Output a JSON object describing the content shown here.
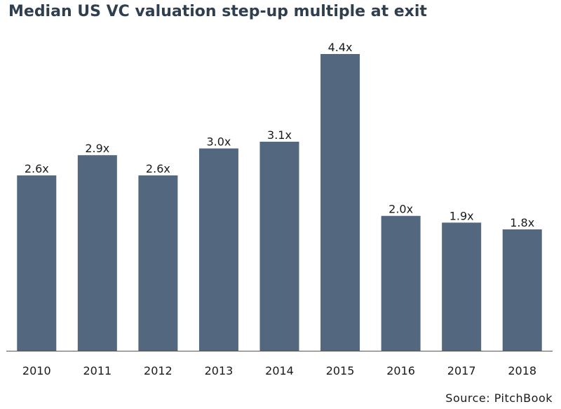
{
  "title": "Median US VC valuation step-up multiple at exit",
  "source": "Source: PitchBook",
  "colors": {
    "bar": "#53677e",
    "axis": "#555555",
    "title": "#2f3f4f"
  },
  "chart_data": {
    "type": "bar",
    "title": "Median US VC valuation step-up multiple at exit",
    "categories": [
      "2010",
      "2011",
      "2012",
      "2013",
      "2014",
      "2015",
      "2016",
      "2017",
      "2018"
    ],
    "values": [
      2.6,
      2.9,
      2.6,
      3.0,
      3.1,
      4.4,
      2.0,
      1.9,
      1.8
    ],
    "data_labels": [
      "2.6x",
      "2.9x",
      "2.6x",
      "3.0x",
      "3.1x",
      "4.4x",
      "2.0x",
      "1.9x",
      "1.8x"
    ],
    "xlabel": "",
    "ylabel": "",
    "ylim": [
      0,
      4.4
    ],
    "grid": false,
    "legend": "none"
  }
}
